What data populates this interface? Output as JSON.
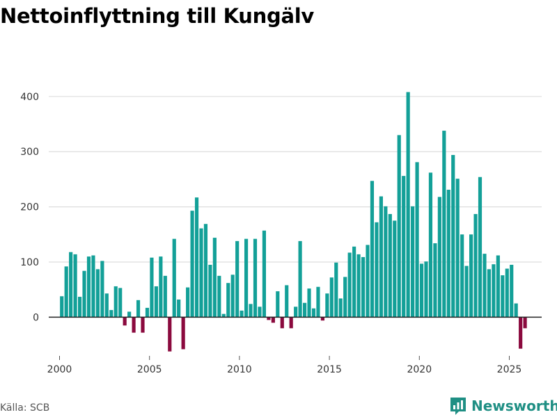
{
  "title": "Nettoinflyttning till Kungälv",
  "source": "Källa: SCB",
  "brand": {
    "name": "Newsworthy",
    "icon": "bar-chart-logo-icon"
  },
  "colors": {
    "positive": "#13a098",
    "negative": "#8b0a3e",
    "grid": "#dddddd",
    "zero_line": "#222222",
    "brand": "#1f8f84"
  },
  "chart_data": {
    "type": "bar",
    "title": "Nettoinflyttning till Kungälv",
    "xlabel": "",
    "ylabel": "",
    "frequency": "quarterly",
    "start": 2000.0,
    "step": 0.25,
    "ylim": [
      -70,
      430
    ],
    "xlim": [
      1999.4,
      2026.8
    ],
    "yticks": [
      0,
      100,
      200,
      300,
      400
    ],
    "xticks": [
      2000,
      2005,
      2010,
      2015,
      2020,
      2025
    ],
    "grid": true,
    "values": [
      38,
      92,
      118,
      114,
      37,
      84,
      110,
      112,
      87,
      102,
      43,
      13,
      56,
      53,
      -15,
      10,
      -28,
      31,
      -28,
      17,
      108,
      56,
      110,
      75,
      -62,
      142,
      32,
      -58,
      54,
      193,
      217,
      161,
      169,
      95,
      144,
      75,
      6,
      62,
      77,
      138,
      12,
      142,
      24,
      142,
      19,
      157,
      -5,
      -10,
      47,
      -20,
      58,
      -20,
      19,
      138,
      26,
      52,
      16,
      55,
      -6,
      43,
      72,
      99,
      34,
      73,
      117,
      128,
      114,
      109,
      131,
      247,
      172,
      219,
      201,
      187,
      175,
      330,
      256,
      408,
      201,
      281,
      97,
      101,
      262,
      134,
      218,
      338,
      231,
      294,
      251,
      150,
      93,
      150,
      187,
      254,
      115,
      87,
      96,
      112,
      76,
      88,
      95,
      25,
      -57,
      -20
    ]
  }
}
